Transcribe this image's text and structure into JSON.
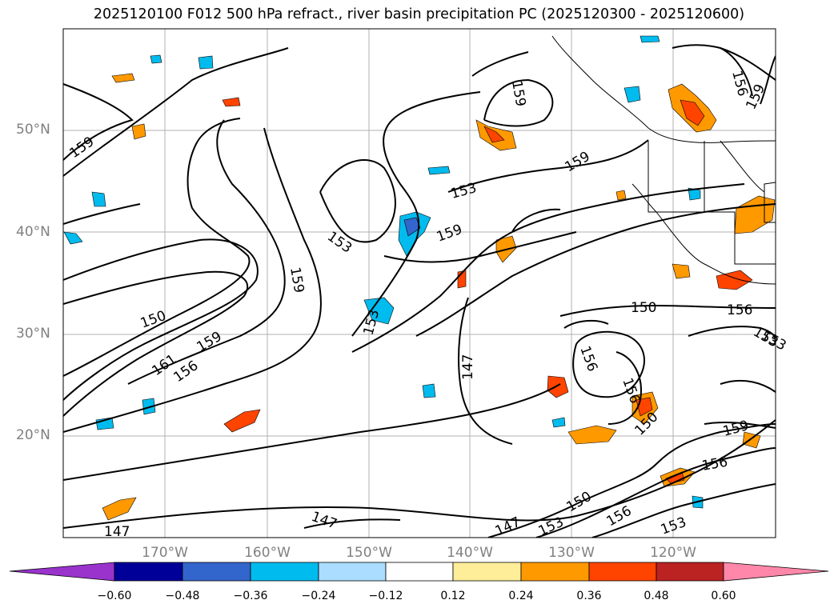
{
  "title": "2025120100 F012 500 hPa refract., river basin precipitation PC (2025120300 - 2025120600)",
  "lat_labels": [
    "50°N",
    "40°N",
    "30°N",
    "20°N"
  ],
  "lon_labels": [
    "170°W",
    "160°W",
    "150°W",
    "140°W",
    "130°W",
    "120°W"
  ],
  "colorbar": {
    "colors": [
      "#9933cc",
      "#000099",
      "#3366cc",
      "#00bbee",
      "#aaddff",
      "#ffffff",
      "#ffee99",
      "#ff9900",
      "#ff4400",
      "#bb2222",
      "#ff88aa"
    ],
    "tick_labels": [
      "−0.60",
      "−0.48",
      "−0.36",
      "−0.24",
      "−0.12",
      "0.12",
      "0.24",
      "0.36",
      "0.48",
      "0.60"
    ]
  },
  "contour_labels": [
    "159",
    "153",
    "159",
    "159",
    "153",
    "159",
    "159",
    "150",
    "159",
    "156",
    "161",
    "153",
    "147",
    "156",
    "156",
    "150",
    "150",
    "156",
    "153",
    "159",
    "156",
    "147",
    "147",
    "147",
    "150",
    "153",
    "156",
    "153",
    "159",
    "153",
    "156"
  ]
}
